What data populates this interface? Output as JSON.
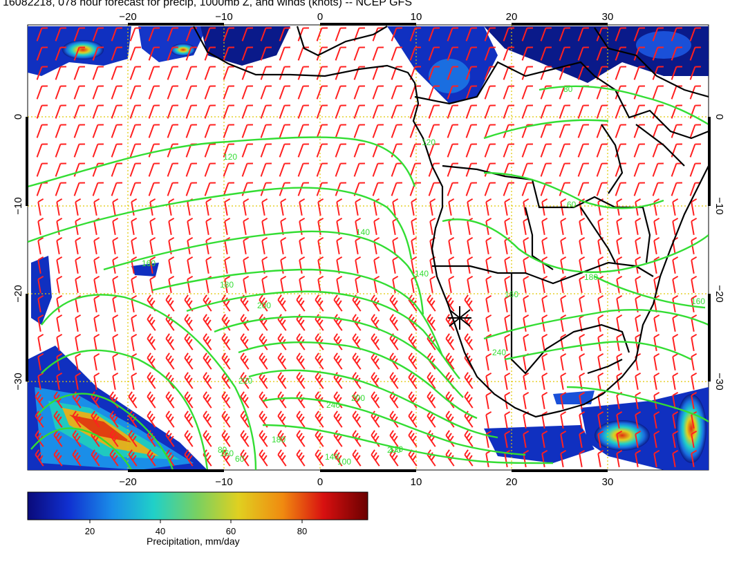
{
  "title": "16082218, 078 hour forecast for precip, 1000mb Z, and winds (knots) -- NCEP GFS",
  "axes": {
    "lon_ticks": [
      "−20",
      "−10",
      "0",
      "10",
      "20",
      "30"
    ],
    "lat_ticks": [
      "0",
      "−10",
      "−20",
      "−30"
    ]
  },
  "contour_labels": [
    "120",
    "140",
    "160",
    "180",
    "200",
    "220",
    "240",
    "200",
    "180",
    "160",
    "140",
    "120",
    "100",
    "80",
    "60",
    "120",
    "140",
    "160",
    "180",
    "200",
    "240",
    "80",
    "60",
    "160"
  ],
  "colorbar": {
    "label": "Precipitation, mm/day",
    "ticks": [
      "20",
      "40",
      "60",
      "80"
    ],
    "colors": [
      "#0a0a7a",
      "#1030d0",
      "#1a8ee8",
      "#20d0c8",
      "#7ad060",
      "#e0d020",
      "#f08a10",
      "#d81010",
      "#6a0000"
    ]
  },
  "colors": {
    "contour": "#33dd33",
    "wind_barb": "#ff2020",
    "coastline": "#000000",
    "grid": "#e0c800"
  }
}
